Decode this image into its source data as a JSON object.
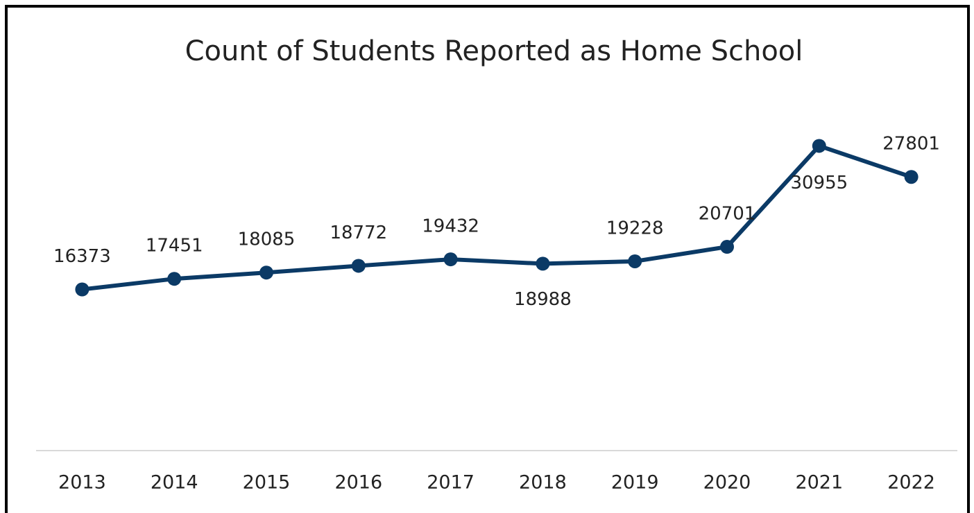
{
  "chart_data": {
    "type": "line",
    "title": "Count of Students Reported as Home School",
    "categories": [
      "2013",
      "2014",
      "2015",
      "2016",
      "2017",
      "2018",
      "2019",
      "2020",
      "2021",
      "2022"
    ],
    "series": [
      {
        "name": "Count of Students",
        "color": "#0b3a66",
        "values": [
          16373,
          17451,
          18085,
          18772,
          19432,
          18988,
          19228,
          20701,
          30955,
          27801
        ]
      }
    ],
    "ylim": [
      0,
      35000
    ],
    "grid": false
  }
}
